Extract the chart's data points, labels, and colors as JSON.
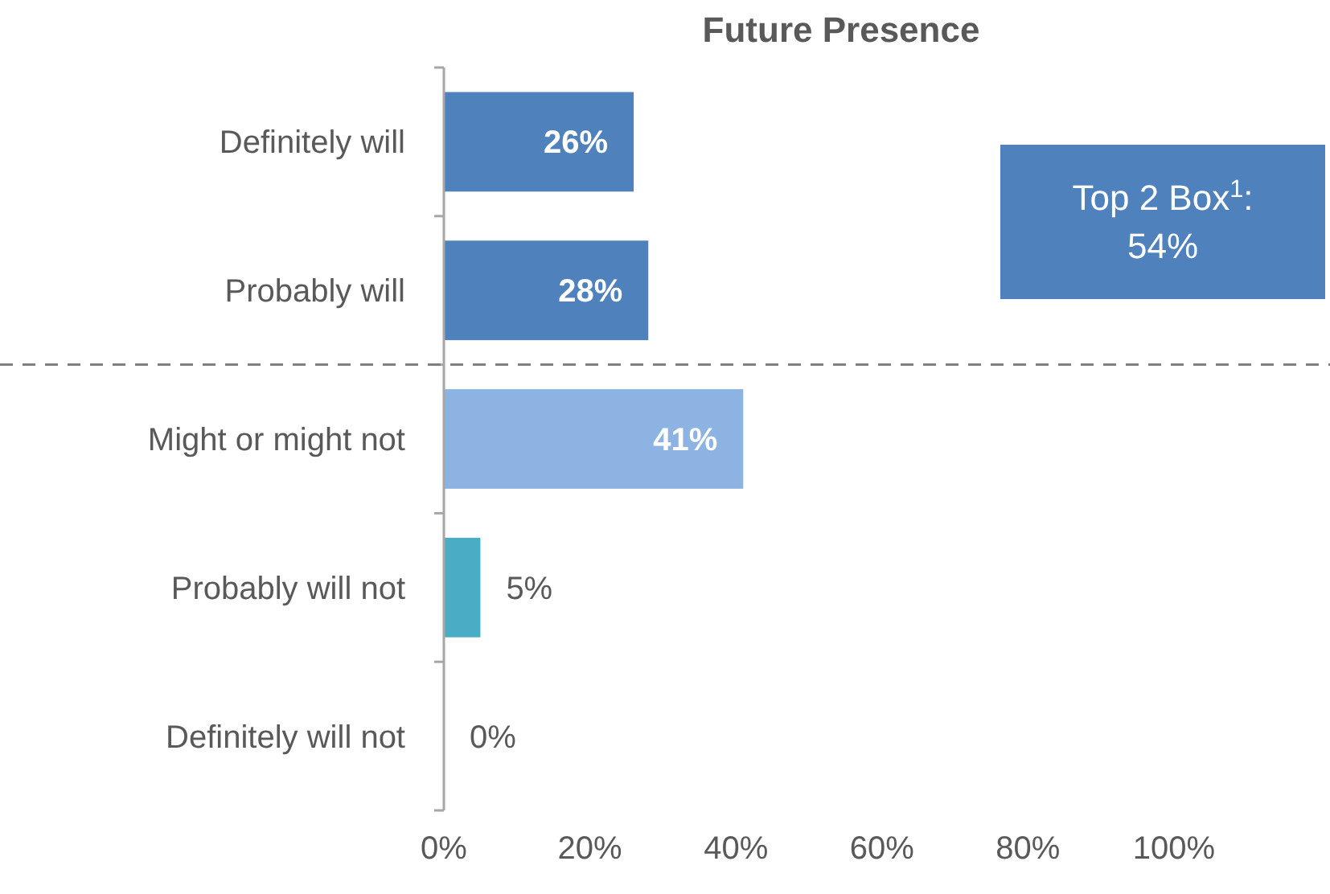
{
  "chart_data": {
    "type": "bar",
    "orientation": "horizontal",
    "title": "Future Presence",
    "categories": [
      "Definitely will",
      "Probably will",
      "Might or might not",
      "Probably will not",
      "Definitely will not"
    ],
    "values": [
      26,
      28,
      41,
      5,
      0
    ],
    "colors": [
      "#4f81bd",
      "#4f81bd",
      "#8db3e2",
      "#4bacc6",
      "#4bacc6"
    ],
    "value_labels": [
      "26%",
      "28%",
      "41%",
      "5%",
      "0%"
    ],
    "xlim": [
      0,
      100
    ],
    "xticks": [
      {
        "value": 0,
        "label": "0%"
      },
      {
        "value": 20,
        "label": "20%"
      },
      {
        "value": 40,
        "label": "40%"
      },
      {
        "value": 60,
        "label": "60%"
      },
      {
        "value": 80,
        "label": "80%"
      },
      {
        "value": 100,
        "label": "100%"
      }
    ],
    "grid": false,
    "annotations": [
      "Top 2 Box$^{1}$: 54%"
    ]
  }
}
